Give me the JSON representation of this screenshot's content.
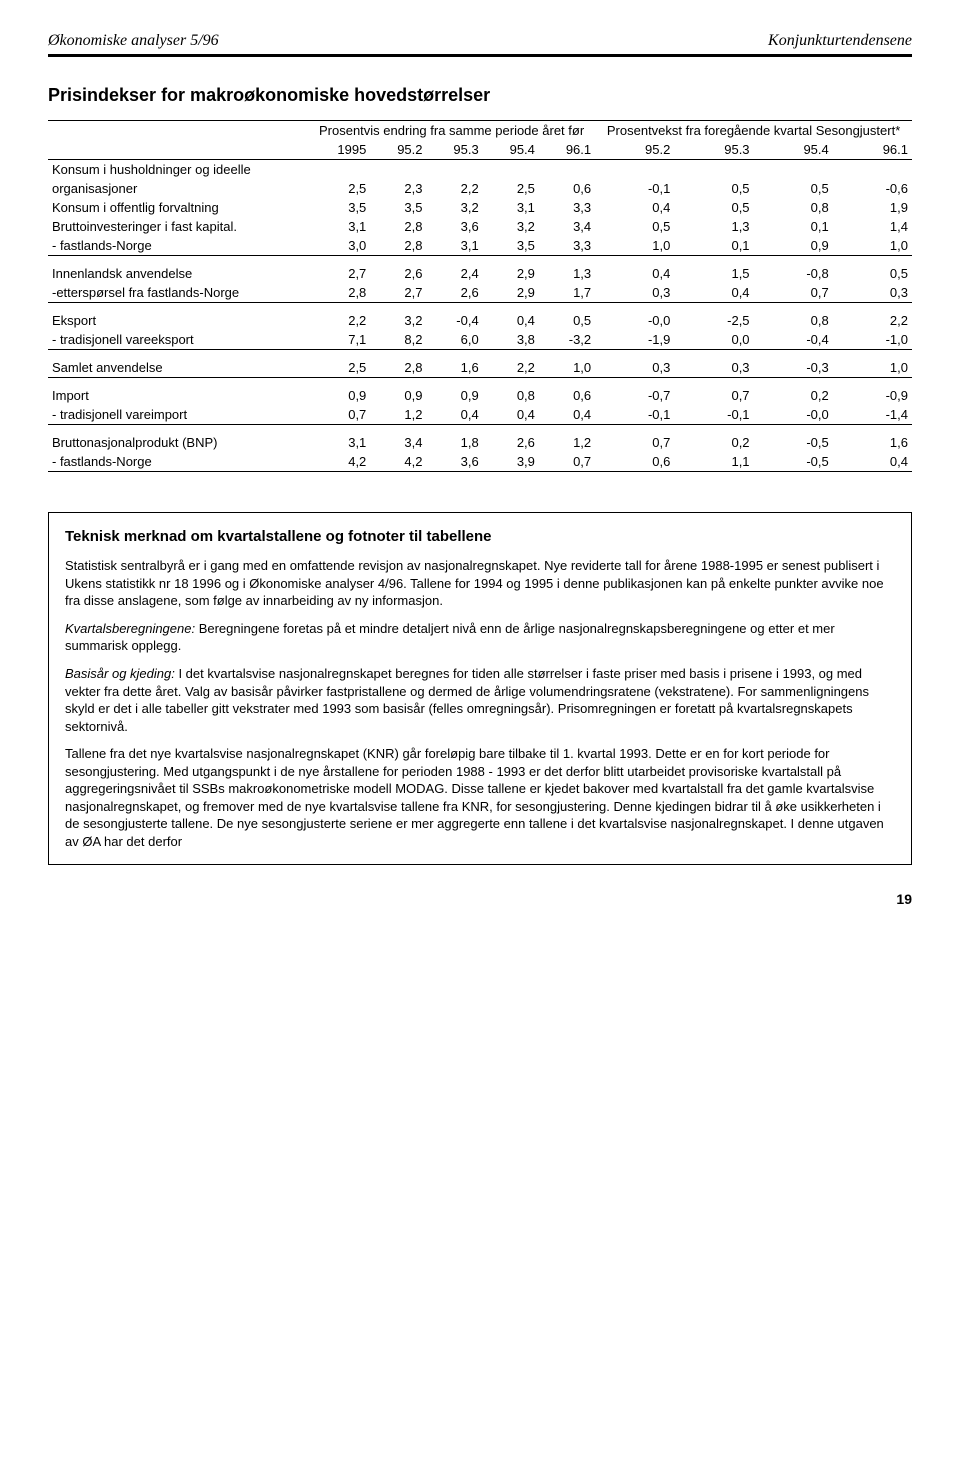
{
  "header": {
    "left": "Økonomiske analyser 5/96",
    "right": "Konjunkturtendensene"
  },
  "title": "Prisindekser for makroøkonomiske hovedstørrelser",
  "spanheads": {
    "left": "Prosentvis endring fra samme periode året før",
    "right": "Prosentvekst fra foregående kvartal Sesongjustert*"
  },
  "cols": [
    "1995",
    "95.2",
    "95.3",
    "95.4",
    "96.1",
    "95.2",
    "95.3",
    "95.4",
    "96.1"
  ],
  "groups": [
    {
      "rows": [
        {
          "label": "Konsum i husholdninger og ideelle",
          "vals": []
        },
        {
          "label": "organisasjoner",
          "vals": [
            "2,5",
            "2,3",
            "2,2",
            "2,5",
            "0,6",
            "-0,1",
            "0,5",
            "0,5",
            "-0,6"
          ]
        },
        {
          "label": "Konsum i offentlig forvaltning",
          "vals": [
            "3,5",
            "3,5",
            "3,2",
            "3,1",
            "3,3",
            "0,4",
            "0,5",
            "0,8",
            "1,9"
          ]
        },
        {
          "label": "Bruttoinvesteringer i fast kapital.",
          "vals": [
            "3,1",
            "2,8",
            "3,6",
            "3,2",
            "3,4",
            "0,5",
            "1,3",
            "0,1",
            "1,4"
          ]
        },
        {
          "label": "- fastlands-Norge",
          "vals": [
            "3,0",
            "2,8",
            "3,1",
            "3,5",
            "3,3",
            "1,0",
            "0,1",
            "0,9",
            "1,0"
          ]
        }
      ]
    },
    {
      "rows": [
        {
          "label": "Innenlandsk anvendelse",
          "vals": [
            "2,7",
            "2,6",
            "2,4",
            "2,9",
            "1,3",
            "0,4",
            "1,5",
            "-0,8",
            "0,5"
          ]
        },
        {
          "label": "-etterspørsel fra fastlands-Norge",
          "vals": [
            "2,8",
            "2,7",
            "2,6",
            "2,9",
            "1,7",
            "0,3",
            "0,4",
            "0,7",
            "0,3"
          ]
        }
      ]
    },
    {
      "rows": [
        {
          "label": "Eksport",
          "vals": [
            "2,2",
            "3,2",
            "-0,4",
            "0,4",
            "0,5",
            "-0,0",
            "-2,5",
            "0,8",
            "2,2"
          ]
        },
        {
          "label": "- tradisjonell vareeksport",
          "vals": [
            "7,1",
            "8,2",
            "6,0",
            "3,8",
            "-3,2",
            "-1,9",
            "0,0",
            "-0,4",
            "-1,0"
          ]
        }
      ]
    },
    {
      "rows": [
        {
          "label": "Samlet anvendelse",
          "vals": [
            "2,5",
            "2,8",
            "1,6",
            "2,2",
            "1,0",
            "0,3",
            "0,3",
            "-0,3",
            "1,0"
          ]
        }
      ]
    },
    {
      "rows": [
        {
          "label": "Import",
          "vals": [
            "0,9",
            "0,9",
            "0,9",
            "0,8",
            "0,6",
            "-0,7",
            "0,7",
            "0,2",
            "-0,9"
          ]
        },
        {
          "label": "- tradisjonell vareimport",
          "vals": [
            "0,7",
            "1,2",
            "0,4",
            "0,4",
            "0,4",
            "-0,1",
            "-0,1",
            "-0,0",
            "-1,4"
          ]
        }
      ]
    },
    {
      "rows": [
        {
          "label": "Bruttonasjonalprodukt (BNP)",
          "vals": [
            "3,1",
            "3,4",
            "1,8",
            "2,6",
            "1,2",
            "0,7",
            "0,2",
            "-0,5",
            "1,6"
          ]
        },
        {
          "label": "- fastlands-Norge",
          "vals": [
            "4,2",
            "4,2",
            "3,6",
            "3,9",
            "0,7",
            "0,6",
            "1,1",
            "-0,5",
            "0,4"
          ]
        }
      ]
    }
  ],
  "box": {
    "title": "Teknisk merknad om kvartalstallene og fotnoter til tabellene",
    "paras": [
      "Statistisk sentralbyrå er i gang med en omfattende revisjon av nasjonalregnskapet. Nye reviderte tall for årene 1988-1995 er senest publisert i Ukens statistikk nr 18 1996 og i Økonomiske analyser 4/96. Tallene for 1994 og 1995 i denne publikasjonen kan på enkelte punkter avvike noe fra disse anslagene, som følge av innarbeiding av ny informasjon.",
      "<i>Kvartalsberegningene:</i> Beregningene foretas på et mindre detaljert nivå enn de årlige nasjonalregnskapsberegningene og etter et mer summarisk opplegg.",
      "<i>Basisår og kjeding:</i> I det kvartalsvise nasjonalregnskapet beregnes for tiden alle størrelser i faste priser med basis i prisene i 1993, og med vekter fra dette året. Valg av basisår påvirker fastpristallene og dermed de årlige volumendringsratene (vekstratene). For sammenligningens skyld er det i alle tabeller gitt vekstrater med 1993 som basisår (felles omregningsår). Prisomregningen er foretatt på kvartalsregnskapets sektornivå.",
      "Tallene fra det nye kvartalsvise nasjonalregnskapet (KNR) går foreløpig bare tilbake til 1. kvartal 1993. Dette er en for kort periode for sesongjustering. Med utgangspunkt i de nye årstallene for perioden 1988 - 1993 er det derfor blitt utarbeidet provisoriske kvartalstall på aggregeringsnivået til SSBs makroøkonometriske modell MODAG. Disse tallene er kjedet bakover med kvartalstall fra det gamle kvartalsvise nasjonalregnskapet, og fremover med de nye kvartalsvise tallene fra KNR, for sesongjustering. Denne kjedingen bidrar til å øke usikkerheten i de sesongjusterte tallene. De nye sesongjusterte seriene er mer aggregerte enn tallene i det kvartalsvise nasjonalregnskapet. I denne utgaven av ØA har det derfor"
    ]
  },
  "pagenum": "19"
}
